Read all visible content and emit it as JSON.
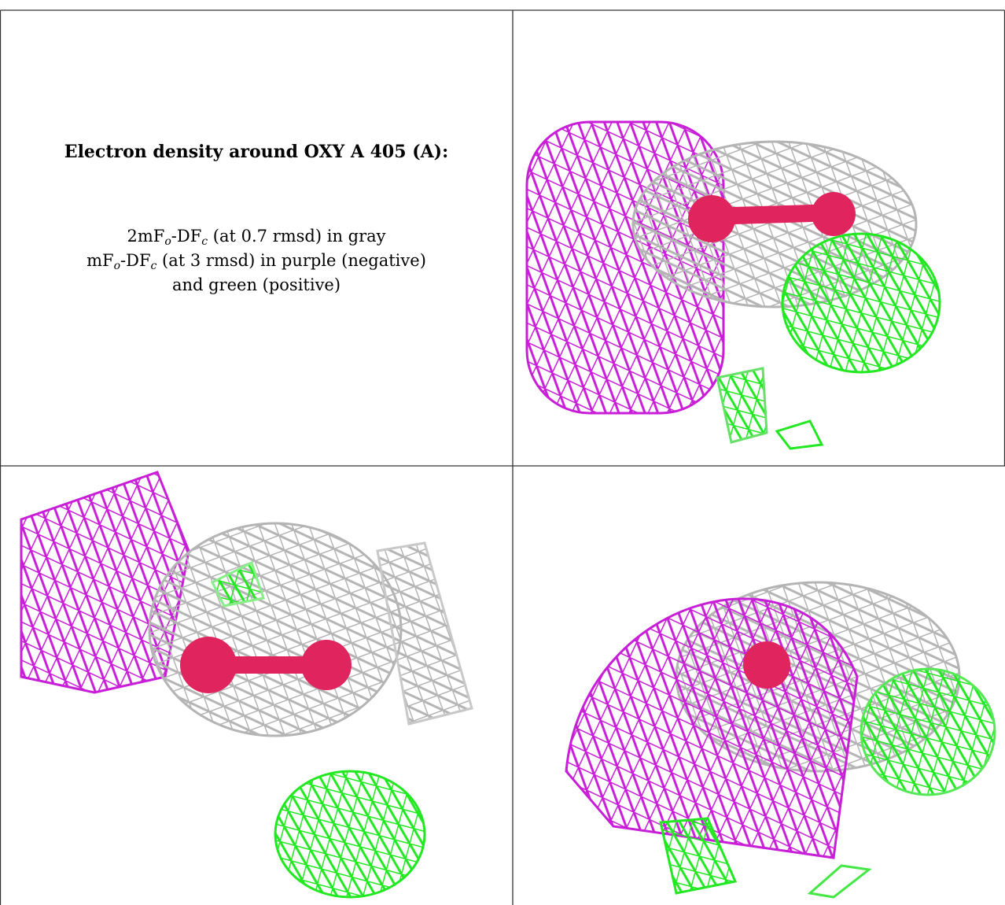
{
  "panel": {
    "title": "Electron density around OXY A 405 (A):",
    "caption": [
      [
        "2mF",
        "o",
        "-DF",
        "c",
        " (at 0.7 rmsd) in gray"
      ],
      [
        "mF",
        "o",
        "-DF",
        "c",
        " (at 3 rmsd) in purple (negative)"
      ],
      [
        "and green (positive)"
      ]
    ]
  }
}
